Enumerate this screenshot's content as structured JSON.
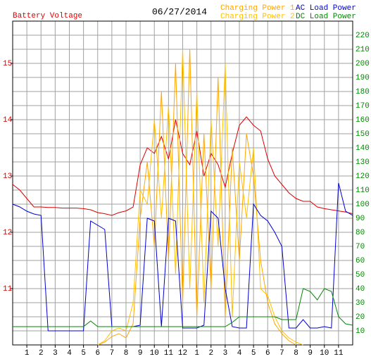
{
  "chart_data": {
    "type": "line",
    "title": "06/27/2014",
    "x": [
      0,
      0.5,
      1,
      1.5,
      2,
      2.5,
      3,
      3.5,
      4,
      4.5,
      5,
      5.5,
      6,
      6.5,
      7,
      7.5,
      8,
      8.5,
      9,
      9.5,
      10,
      10.5,
      11,
      11.5,
      12,
      12.5,
      13,
      13.5,
      14,
      14.5,
      15,
      15.5,
      16,
      16.5,
      17,
      17.5,
      18,
      18.5,
      19,
      19.5,
      20,
      20.5,
      21,
      21.5,
      22,
      22.5,
      23,
      23.5,
      24
    ],
    "xlim": [
      0,
      24
    ],
    "xticks": [
      1,
      2,
      3,
      4,
      5,
      6,
      7,
      8,
      9,
      10,
      11,
      12,
      {
        "value": 13,
        "label": "1"
      },
      {
        "value": 14,
        "label": "2"
      },
      {
        "value": 15,
        "label": "3"
      },
      {
        "value": 16,
        "label": "4"
      },
      {
        "value": 17,
        "label": "5"
      },
      {
        "value": 18,
        "label": "6"
      },
      {
        "value": 19,
        "label": "7"
      },
      {
        "value": 20,
        "label": "8"
      },
      {
        "value": 21,
        "label": "9"
      },
      {
        "value": 22,
        "label": "10"
      },
      {
        "value": 23,
        "label": "11"
      }
    ],
    "ylim": [
      10,
      15.75
    ],
    "yticks": [
      11,
      12,
      13,
      14,
      15
    ],
    "y2lim": [
      0,
      230
    ],
    "y2ticks": [
      10,
      20,
      30,
      40,
      50,
      60,
      70,
      80,
      90,
      100,
      110,
      120,
      130,
      140,
      150,
      160,
      170,
      180,
      190,
      200,
      210,
      220
    ],
    "grid": true,
    "series": [
      {
        "name": "Battery Voltage",
        "color": "#dd0000",
        "axis": "y",
        "values": [
          12.85,
          12.75,
          12.6,
          12.45,
          12.45,
          12.44,
          12.44,
          12.43,
          12.43,
          12.43,
          12.42,
          12.4,
          12.35,
          12.33,
          12.3,
          12.35,
          12.38,
          12.45,
          13.2,
          13.5,
          13.4,
          13.7,
          13.3,
          14.0,
          13.4,
          13.2,
          13.8,
          13.0,
          13.4,
          13.2,
          12.8,
          13.4,
          13.9,
          14.05,
          13.9,
          13.8,
          13.3,
          13.0,
          12.85,
          12.7,
          12.6,
          12.55,
          12.55,
          12.45,
          12.42,
          12.4,
          12.38,
          12.36,
          12.33
        ]
      },
      {
        "name": "Charging Power 1",
        "color": "#ffa500",
        "axis": "y2",
        "values": [
          null,
          null,
          null,
          null,
          null,
          null,
          null,
          null,
          null,
          null,
          null,
          null,
          0,
          2,
          6,
          8,
          5,
          15,
          90,
          130,
          70,
          180,
          60,
          200,
          30,
          210,
          20,
          150,
          40,
          190,
          20,
          140,
          60,
          150,
          120,
          60,
          30,
          15,
          8,
          3,
          0,
          null,
          null,
          null,
          null,
          null,
          null,
          null,
          null
        ]
      },
      {
        "name": "Charging Power 2",
        "color": "#ffc000",
        "axis": "y2",
        "values": [
          null,
          null,
          null,
          null,
          null,
          null,
          null,
          null,
          null,
          null,
          null,
          null,
          0,
          3,
          10,
          12,
          10,
          30,
          110,
          100,
          160,
          90,
          170,
          50,
          210,
          40,
          180,
          30,
          160,
          70,
          200,
          20,
          130,
          90,
          140,
          40,
          35,
          20,
          10,
          5,
          2,
          0,
          null,
          null,
          null,
          null,
          null,
          null,
          null
        ]
      },
      {
        "name": "AC Load Power",
        "color": "#0000cc",
        "axis": "y2",
        "values": [
          100,
          98,
          95,
          93,
          92,
          10,
          10,
          10,
          10,
          10,
          10,
          88,
          85,
          82,
          13,
          13,
          13,
          13,
          14,
          90,
          88,
          13,
          90,
          88,
          12,
          12,
          12,
          14,
          95,
          90,
          40,
          13,
          12,
          12,
          100,
          92,
          88,
          80,
          70,
          12,
          12,
          18,
          12,
          12,
          13,
          12,
          115,
          95,
          92
        ]
      },
      {
        "name": "DC Load Power",
        "color": "#008800",
        "axis": "y2",
        "values": [
          13,
          13,
          13,
          13,
          13,
          13,
          13,
          13,
          13,
          13,
          13,
          17,
          13,
          13,
          13,
          13,
          13,
          13,
          13,
          13,
          13,
          13,
          13,
          13,
          13,
          13,
          13,
          13,
          13,
          13,
          13,
          16,
          20,
          20,
          20,
          20,
          20,
          20,
          18,
          18,
          18,
          40,
          38,
          32,
          40,
          38,
          20,
          15,
          14
        ]
      }
    ]
  }
}
